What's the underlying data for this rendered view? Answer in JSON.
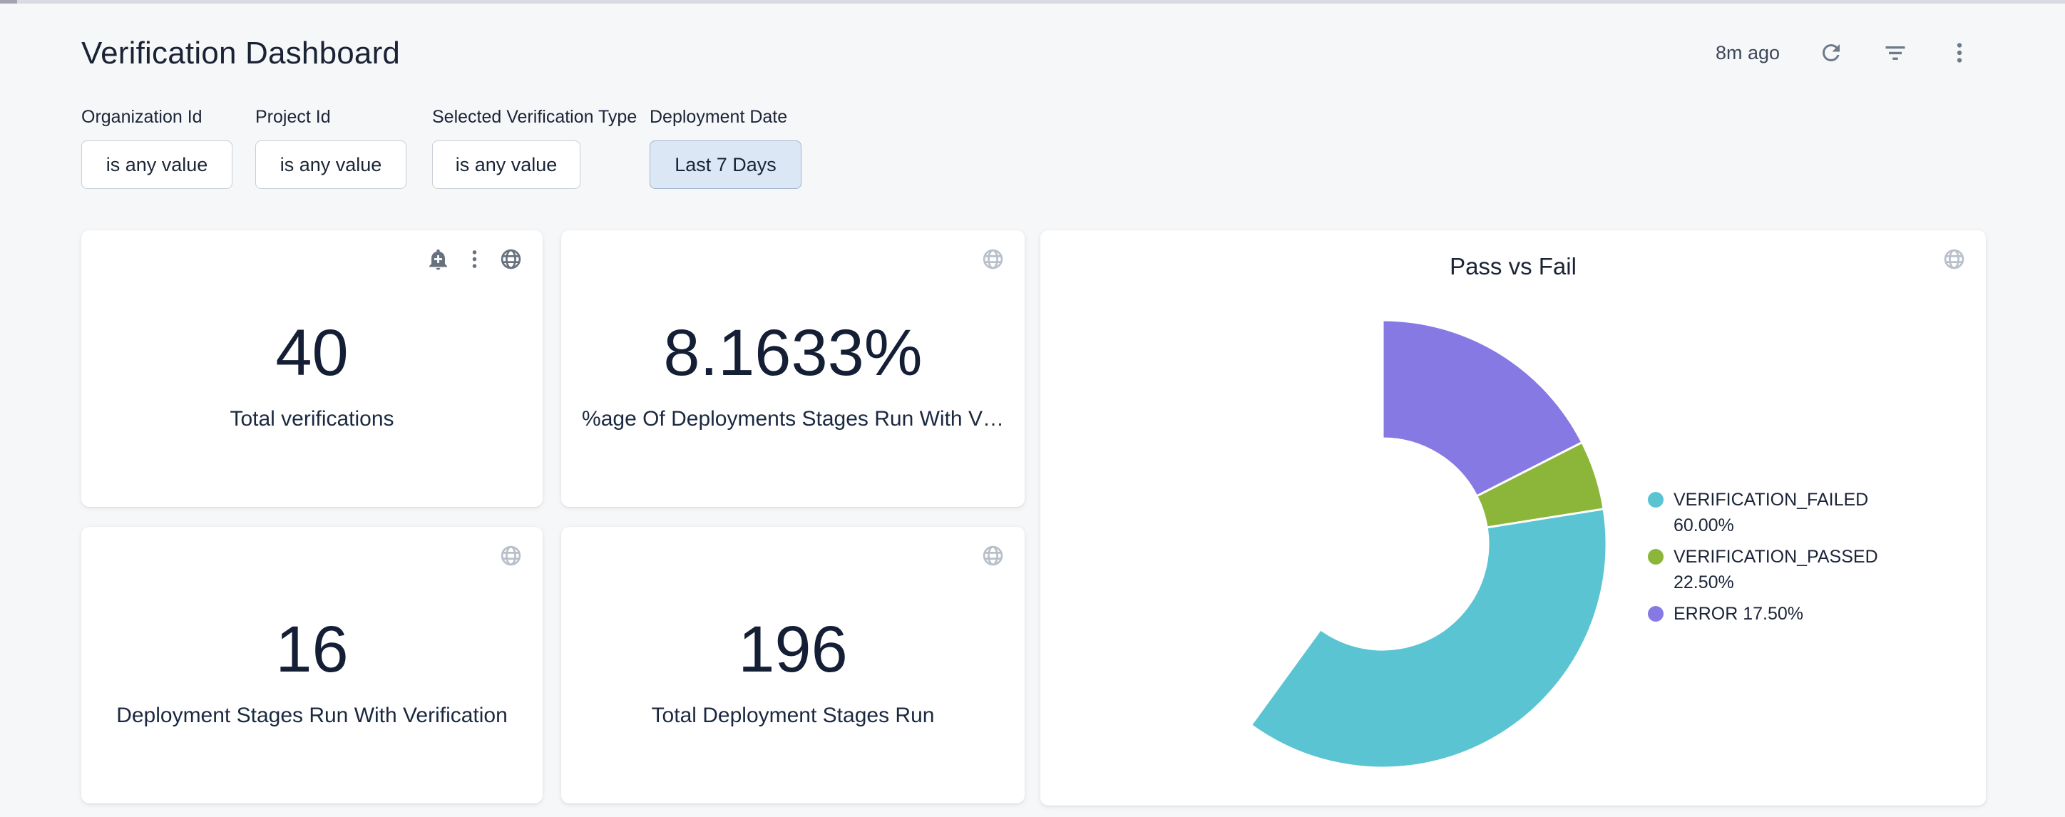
{
  "header": {
    "title": "Verification Dashboard",
    "last_refreshed": "8m ago",
    "refresh_icon": "refresh-circular-arrow",
    "filter_icon": "filter-list",
    "more_icon": "kebab-vertical-dots"
  },
  "filters": [
    {
      "label": "Organization Id",
      "value": "is any value",
      "active": false
    },
    {
      "label": "Project Id",
      "value": "is any value",
      "active": false
    },
    {
      "label": "Selected Verification Type",
      "value": "is any value",
      "active": false
    },
    {
      "label": "Deployment Date",
      "value": "Last 7 Days",
      "active": true
    }
  ],
  "tiles": [
    {
      "value": "40",
      "label": "Total verifications",
      "icons": [
        "bell-plus-icon",
        "kebab-icon",
        "globe-icon"
      ]
    },
    {
      "value": "8.1633%",
      "label": "%age Of Deployments Stages Run With V…",
      "icons": [
        "globe-icon"
      ]
    },
    {
      "value": "16",
      "label": "Deployment Stages Run With Verification",
      "icons": [
        "globe-icon"
      ]
    },
    {
      "value": "196",
      "label": "Total Deployment Stages Run",
      "icons": [
        "globe-icon"
      ]
    }
  ],
  "chart_data": {
    "type": "pie",
    "subtype": "donut",
    "title": "Pass vs Fail",
    "labels": [
      "VERIFICATION_FAILED",
      "VERIFICATION_PASSED",
      "ERROR"
    ],
    "values": [
      60.0,
      22.5,
      17.5
    ],
    "value_labels": [
      "60.00%",
      "22.50%",
      "17.50%"
    ],
    "legend": [
      "VERIFICATION_FAILED 60.00%",
      "VERIFICATION_PASSED 22.50%",
      "ERROR 17.50%"
    ],
    "colors": [
      "#5BC4D2",
      "#8CB63A",
      "#8779E4"
    ],
    "legend_position": "right",
    "start_angle_deg": 0,
    "clockwise": true,
    "inner_radius_ratio": 0.47
  },
  "colors": {
    "page_background": "#f6f7f9",
    "card_background": "#ffffff",
    "text_primary": "#1b2437",
    "icon_gray": "#6e7a89",
    "icon_light_gray": "#b9c0ca",
    "active_filter_background": "#dbe7f4",
    "active_filter_border": "#9fb4ce"
  }
}
